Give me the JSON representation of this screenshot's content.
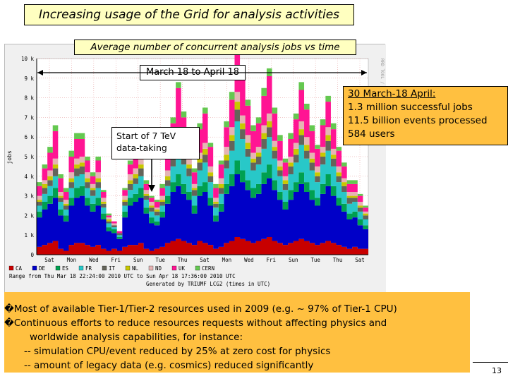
{
  "title": "Increasing usage of the Grid for analysis activities",
  "subtitle": "Average number of concurrent analysis jobs vs time",
  "range_label": "March 18 to April 18",
  "annotation_start": "Start of 7 TeV data-taking",
  "stats": {
    "header": "30 March-18 April:",
    "lines": [
      "1.3 million successful jobs",
      "11.5 billion events processed",
      "584 users"
    ]
  },
  "bullets": [
    "�Most of available Tier-1/Tier-2 resources used in 2009 (e.g. ~ 97% of Tier-1 CPU)",
    "�Continuous efforts to reduce resources requests without affecting physics and",
    "worldwide analysis capabilities, for instance:",
    "-- simulation CPU/event reduced by 25% at zero cost for physics",
    "-- amount of legacy data (e.g. cosmics) reduced significantly"
  ],
  "page_number": "13",
  "chart_data": {
    "type": "area",
    "ylabel": "jobs",
    "yticks": [
      "0",
      "1 k",
      "2 k",
      "3 k",
      "4 k",
      "5 k",
      "6 k",
      "7 k",
      "8 k",
      "9 k",
      "10 k"
    ],
    "ylim": [
      0,
      10000
    ],
    "xticks": [
      "Sat",
      "Mon",
      "Wed",
      "Fri",
      "Sun",
      "Tue",
      "Thu",
      "Sat",
      "Mon",
      "Wed",
      "Fri",
      "Sun",
      "Tue",
      "Thu",
      "Sat"
    ],
    "x_points": 62,
    "right_watermark": "RRD TOOL / TOBI OETIKER",
    "footer": [
      "Range from Thu Mar 18 22:24:00 2010 UTC to Sun Apr 18 17:36:00 2010 UTC",
      "Generated by TRIUMF LCG2 (times in UTC)"
    ],
    "legend_position": "bottom",
    "series": [
      {
        "name": "CA",
        "color": "#c80000",
        "values": [
          400,
          500,
          600,
          700,
          300,
          200,
          500,
          600,
          600,
          500,
          400,
          500,
          300,
          200,
          300,
          200,
          400,
          500,
          500,
          600,
          300,
          200,
          300,
          400,
          600,
          700,
          800,
          700,
          600,
          500,
          700,
          600,
          500,
          300,
          400,
          600,
          700,
          900,
          800,
          700,
          600,
          700,
          800,
          900,
          700,
          600,
          500,
          600,
          700,
          800,
          700,
          600,
          500,
          600,
          700,
          600,
          500,
          400,
          300,
          400,
          300,
          300
        ]
      },
      {
        "name": "DE",
        "color": "#0000c8",
        "values": [
          1500,
          1800,
          2000,
          2200,
          1700,
          1500,
          2000,
          2300,
          2400,
          2000,
          1800,
          2000,
          1500,
          1000,
          800,
          600,
          1500,
          2000,
          2200,
          2300,
          1800,
          1400,
          1200,
          1500,
          2000,
          2500,
          2700,
          2400,
          2200,
          1600,
          2300,
          2600,
          2000,
          1400,
          1800,
          2500,
          2800,
          3200,
          2900,
          2600,
          2300,
          2400,
          2800,
          3000,
          2600,
          2200,
          1800,
          2200,
          2500,
          2800,
          2500,
          2200,
          2000,
          2500,
          2800,
          2400,
          2000,
          1800,
          1500,
          1500,
          1200,
          1000
        ]
      },
      {
        "name": "ES",
        "color": "#00a050",
        "values": [
          300,
          400,
          400,
          500,
          300,
          300,
          400,
          500,
          500,
          400,
          400,
          400,
          300,
          200,
          200,
          100,
          300,
          400,
          400,
          500,
          300,
          300,
          200,
          300,
          400,
          500,
          600,
          500,
          400,
          400,
          500,
          500,
          400,
          300,
          400,
          500,
          600,
          700,
          600,
          500,
          500,
          500,
          600,
          700,
          500,
          400,
          400,
          500,
          500,
          600,
          500,
          500,
          400,
          500,
          600,
          500,
          400,
          400,
          300,
          300,
          300,
          200
        ]
      },
      {
        "name": "FR",
        "color": "#28c8c8",
        "values": [
          300,
          400,
          500,
          600,
          400,
          300,
          500,
          600,
          600,
          500,
          400,
          500,
          300,
          200,
          100,
          100,
          300,
          400,
          500,
          600,
          400,
          300,
          300,
          300,
          500,
          800,
          1200,
          1000,
          800,
          500,
          800,
          1000,
          800,
          400,
          500,
          800,
          1200,
          2000,
          1600,
          1200,
          900,
          1000,
          1200,
          1400,
          1100,
          800,
          600,
          800,
          1000,
          1400,
          1200,
          1000,
          800,
          1000,
          1200,
          1000,
          800,
          600,
          500,
          500,
          400,
          300
        ]
      },
      {
        "name": "IT",
        "color": "#64645a",
        "values": [
          200,
          300,
          300,
          400,
          200,
          200,
          300,
          400,
          400,
          300,
          300,
          300,
          200,
          100,
          100,
          100,
          200,
          300,
          300,
          400,
          200,
          200,
          200,
          200,
          300,
          400,
          500,
          400,
          400,
          300,
          400,
          400,
          300,
          200,
          300,
          400,
          500,
          600,
          500,
          400,
          400,
          400,
          500,
          500,
          400,
          300,
          300,
          400,
          400,
          500,
          400,
          400,
          300,
          400,
          500,
          400,
          300,
          300,
          300,
          200,
          200,
          200
        ]
      },
      {
        "name": "NL",
        "color": "#c8c800",
        "values": [
          100,
          200,
          200,
          200,
          100,
          100,
          200,
          200,
          200,
          200,
          100,
          200,
          100,
          100,
          0,
          0,
          100,
          200,
          200,
          200,
          100,
          100,
          100,
          100,
          200,
          200,
          300,
          200,
          200,
          100,
          200,
          300,
          200,
          100,
          200,
          300,
          300,
          400,
          300,
          300,
          200,
          200,
          300,
          300,
          200,
          200,
          200,
          200,
          300,
          300,
          300,
          200,
          200,
          200,
          300,
          200,
          200,
          200,
          100,
          100,
          100,
          100
        ]
      },
      {
        "name": "ND",
        "color": "#e6b4b4",
        "values": [
          200,
          200,
          300,
          300,
          200,
          200,
          300,
          300,
          300,
          300,
          200,
          300,
          200,
          100,
          100,
          0,
          200,
          300,
          300,
          300,
          200,
          200,
          100,
          200,
          300,
          300,
          400,
          300,
          300,
          200,
          300,
          300,
          300,
          200,
          300,
          400,
          400,
          500,
          400,
          400,
          300,
          300,
          400,
          400,
          300,
          300,
          200,
          300,
          300,
          400,
          400,
          300,
          300,
          300,
          400,
          300,
          300,
          200,
          200,
          200,
          200,
          100
        ]
      },
      {
        "name": "UK",
        "color": "#ff1493",
        "values": [
          500,
          600,
          900,
          1400,
          700,
          400,
          800,
          1000,
          900,
          600,
          400,
          600,
          300,
          100,
          100,
          100,
          300,
          500,
          700,
          900,
          300,
          200,
          300,
          400,
          700,
          1300,
          2000,
          1500,
          1000,
          600,
          1200,
          1500,
          1000,
          500,
          700,
          1000,
          1400,
          2200,
          1800,
          1500,
          1100,
          1200,
          1500,
          1900,
          1400,
          1000,
          700,
          900,
          1200,
          1600,
          1400,
          1100,
          900,
          1100,
          1300,
          1000,
          800,
          600,
          400,
          400,
          300,
          200
        ]
      },
      {
        "name": "CERN",
        "color": "#64c850",
        "values": [
          200,
          200,
          300,
          300,
          200,
          200,
          300,
          300,
          300,
          200,
          200,
          200,
          100,
          100,
          0,
          0,
          100,
          200,
          200,
          300,
          200,
          100,
          100,
          200,
          200,
          300,
          300,
          300,
          200,
          200,
          300,
          300,
          200,
          200,
          200,
          300,
          400,
          500,
          400,
          300,
          300,
          300,
          400,
          400,
          300,
          300,
          200,
          300,
          300,
          400,
          300,
          300,
          200,
          300,
          300,
          300,
          200,
          200,
          200,
          200,
          100,
          100
        ]
      }
    ]
  }
}
